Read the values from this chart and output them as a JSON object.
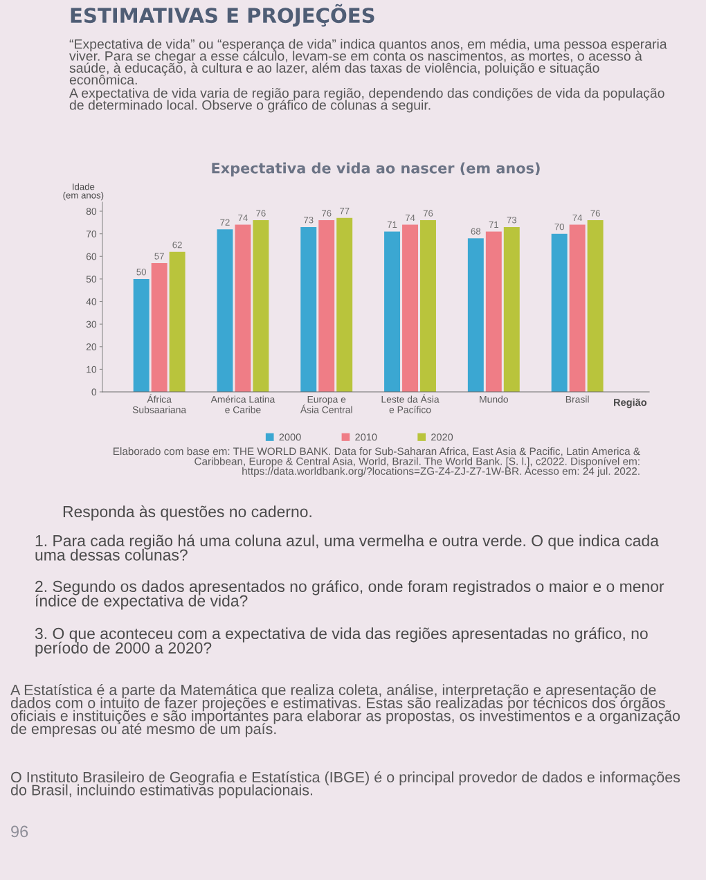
{
  "chart_data": {
    "type": "bar",
    "title": "Expectativa de vida ao nascer (em anos)",
    "xlabel": "Região",
    "ylabel": "Idade\n(em anos)",
    "categories": [
      "África\nSubsaariana",
      "América Latina\ne Caribe",
      "Europa e\nÁsia Central",
      "Leste da Ásia\ne Pacífico",
      "Mundo",
      "Brasil"
    ],
    "series": [
      {
        "name": "2000",
        "color": "#3ba7d2",
        "values": [
          50,
          72,
          73,
          71,
          68,
          70
        ]
      },
      {
        "name": "2010",
        "color": "#ef7d86",
        "values": [
          57,
          74,
          76,
          74,
          71,
          74
        ]
      },
      {
        "name": "2020",
        "color": "#b9c43c",
        "values": [
          62,
          76,
          77,
          76,
          73,
          76
        ]
      }
    ],
    "ylim": [
      0,
      84
    ],
    "yticks": [
      0,
      10,
      20,
      30,
      40,
      50,
      60,
      70,
      80
    ],
    "data_labels": true,
    "legend": "bottom",
    "annotations": [
      "ESTIMATIVAS E PROJEÇÕES",
      "“Expectativa de vida” ou “esperança de vida” indica quantos anos, em média, uma pessoa esperaria viver. Para se chegar a esse cálculo, levam-se em conta os nascimentos, as mortes, o acesso à saúde, à educação, à cultura e ao lazer, além das taxas de violência, poluição e situação econômica.",
      "A expectativa de vida varia de região para região, dependendo das condições de vida da população de determinado local. Observe o gráfico de colunas a seguir.",
      "Elaborado com base em: THE WORLD BANK. Data for Sub-Saharan Africa, East Asia & Pacific, Latin America & Caribbean, Europe & Central Asia, World, Brazil. The World Bank. [S. l.], c2022. Disponível em: https://data.worldbank.org/?locations=ZG-Z4-ZJ-Z7-1W-BR. Acesso em: 24 jul. 2022.",
      "Responda às questões no caderno.",
      "1. Para cada região há uma coluna azul, uma vermelha e outra verde. O que indica cada uma dessas colunas?",
      "2. Segundo os dados apresentados no gráfico, onde foram registrados o maior e o menor índice de expectativa de vida?",
      "3. O que aconteceu com a expectativa de vida das regiões apresentadas no gráfico, no período de 2000 a 2020?",
      "A Estatística é a parte da Matemática que realiza coleta, análise, interpretação e apresentação de dados com o intuito de fazer projeções e estimativas. Estas são realizadas por técnicos dos órgãos oficiais e instituições e são importantes para elaborar as propostas, os investimentos e a organização de empresas ou até mesmo de um país.",
      "O Instituto Brasileiro de Geografia e Estatística (IBGE) é o principal provedor de dados e informações do Brasil, incluindo estimativas populacionais.",
      "96"
    ]
  }
}
